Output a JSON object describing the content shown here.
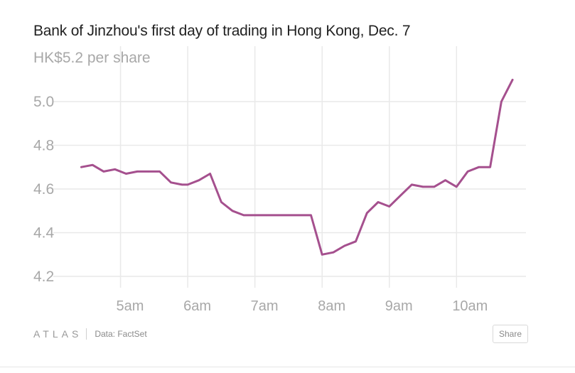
{
  "chart_data": {
    "type": "line",
    "title": "Bank of Jinzhou's first day of trading in Hong Kong, Dec. 7",
    "ylabel": "HK$5.2 per share",
    "ylim": [
      4.2,
      5.2
    ],
    "yticks": [
      {
        "value": 4.2,
        "label": "4.2"
      },
      {
        "value": 4.4,
        "label": "4.4"
      },
      {
        "value": 4.6,
        "label": "4.6"
      },
      {
        "value": 4.8,
        "label": "4.8"
      },
      {
        "value": 5.0,
        "label": "5.0"
      }
    ],
    "xlim": [
      "4:00am",
      "10:55am"
    ],
    "xticks": [
      {
        "time": "5:00am",
        "label": "5am"
      },
      {
        "time": "6:00am",
        "label": "6am"
      },
      {
        "time": "7:00am",
        "label": "7am"
      },
      {
        "time": "8:00am",
        "label": "8am"
      },
      {
        "time": "9:00am",
        "label": "9am"
      },
      {
        "time": "10:00am",
        "label": "10am"
      }
    ],
    "grid": true,
    "line_color": "#a5508e",
    "series": [
      {
        "name": "",
        "points": [
          [
            "4:25am",
            4.7
          ],
          [
            "4:35am",
            4.71
          ],
          [
            "4:45am",
            4.68
          ],
          [
            "4:55am",
            4.69
          ],
          [
            "5:05am",
            4.67
          ],
          [
            "5:15am",
            4.68
          ],
          [
            "5:25am",
            4.68
          ],
          [
            "5:35am",
            4.68
          ],
          [
            "5:45am",
            4.63
          ],
          [
            "5:55am",
            4.62
          ],
          [
            "6:00am",
            4.62
          ],
          [
            "6:10am",
            4.64
          ],
          [
            "6:20am",
            4.67
          ],
          [
            "6:30am",
            4.54
          ],
          [
            "6:40am",
            4.5
          ],
          [
            "6:50am",
            4.48
          ],
          [
            "7:00am",
            4.48
          ],
          [
            "7:10am",
            4.48
          ],
          [
            "7:20am",
            4.48
          ],
          [
            "7:30am",
            4.48
          ],
          [
            "7:40am",
            4.48
          ],
          [
            "7:50am",
            4.48
          ],
          [
            "8:00am",
            4.3
          ],
          [
            "8:10am",
            4.31
          ],
          [
            "8:20am",
            4.34
          ],
          [
            "8:30am",
            4.36
          ],
          [
            "8:40am",
            4.49
          ],
          [
            "8:50am",
            4.54
          ],
          [
            "9:00am",
            4.52
          ],
          [
            "9:10am",
            4.57
          ],
          [
            "9:20am",
            4.62
          ],
          [
            "9:30am",
            4.61
          ],
          [
            "9:40am",
            4.61
          ],
          [
            "9:50am",
            4.64
          ],
          [
            "10:00am",
            4.61
          ],
          [
            "10:10am",
            4.68
          ],
          [
            "10:20am",
            4.7
          ],
          [
            "10:30am",
            4.7
          ],
          [
            "10:40am",
            5.0
          ],
          [
            "10:50am",
            5.1
          ]
        ]
      }
    ]
  },
  "footer": {
    "logo": "ATLAS",
    "source": "Data: FactSet",
    "share_label": "Share"
  }
}
